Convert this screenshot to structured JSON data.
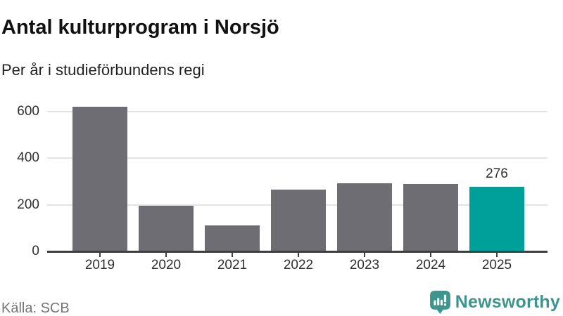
{
  "header": {
    "title": "Antal kulturprogram i Norsjö",
    "subtitle": "Per år i studieförbundens regi"
  },
  "chart_data": {
    "type": "bar",
    "title": "Antal kulturprogram i Norsjö",
    "subtitle": "Per år i studieförbundens regi",
    "categories": [
      "2019",
      "2020",
      "2021",
      "2022",
      "2023",
      "2024",
      "2025"
    ],
    "values": [
      620,
      194,
      110,
      265,
      293,
      289,
      276
    ],
    "highlight": {
      "category": "2025",
      "index": 6,
      "value": 276,
      "label": "276"
    },
    "yticks": [
      0,
      200,
      400,
      600
    ],
    "ylim": [
      0,
      625
    ],
    "xlabel": "",
    "ylabel": "",
    "grid": true,
    "legend": "none",
    "bar_color": "#6e6d73",
    "highlight_color": "#00a09a"
  },
  "footer": {
    "source": "Källa: SCB",
    "brand": "Newsworthy",
    "brand_color": "#3d958e",
    "logo_icon": "newsworthy-speech-bubble-bar-chart-icon"
  },
  "colors": {
    "background": "#ffffff",
    "title": "#111111",
    "subtitle": "#222222",
    "axis": "#3e3e3e",
    "tick_label": "#2f2f2f",
    "gridline": "#e4e4e4",
    "source_text": "#757575"
  }
}
